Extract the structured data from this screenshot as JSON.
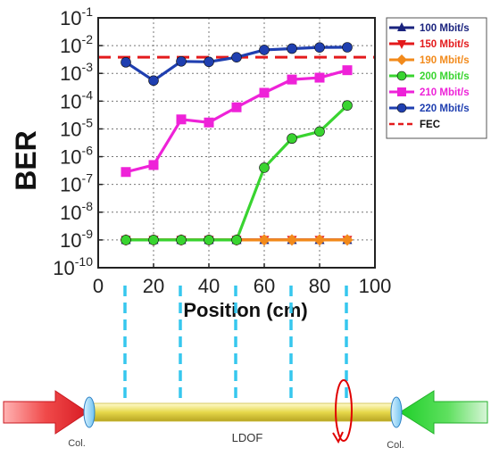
{
  "chart_data": {
    "type": "line",
    "xlabel": "Position (cm)",
    "ylabel": "BER",
    "xlim": [
      0,
      100
    ],
    "ylim_log10": [
      -10,
      -1
    ],
    "y_scale": "log",
    "grid": true,
    "legend_position": "right",
    "x_ticks": [
      "0",
      "20",
      "40",
      "60",
      "80",
      "100"
    ],
    "y_tick_exponents": [
      "-1",
      "-2",
      "-3",
      "-4",
      "-5",
      "-6",
      "-7",
      "-8",
      "-9",
      "-10"
    ],
    "y_tick_base": "10",
    "fec_threshold": 0.0038,
    "fec_label": "FEC",
    "x": [
      10,
      20,
      30,
      40,
      50,
      60,
      70,
      80,
      90
    ],
    "series": [
      {
        "name": "100 Mbit/s",
        "color": "#1a237e",
        "marker": "triangle-up",
        "values": [
          1e-09,
          1e-09,
          1e-09,
          1e-09,
          1e-09,
          1e-09,
          1e-09,
          1e-09,
          1e-09
        ]
      },
      {
        "name": "150 Mbit/s",
        "color": "#e31a1c",
        "marker": "triangle-down",
        "values": [
          1e-09,
          1e-09,
          1e-09,
          1e-09,
          1e-09,
          1e-09,
          1e-09,
          1e-09,
          1e-09
        ]
      },
      {
        "name": "190 Mbit/s",
        "color": "#f28a1b",
        "marker": "diamond",
        "values": [
          1e-09,
          1e-09,
          1e-09,
          1e-09,
          1e-09,
          1e-09,
          1e-09,
          1e-09,
          1e-09
        ]
      },
      {
        "name": "200 Mbit/s",
        "color": "#39d430",
        "marker": "circle",
        "values": [
          1e-09,
          1e-09,
          1e-09,
          1e-09,
          1e-09,
          4e-07,
          4.5e-06,
          8e-06,
          7e-05
        ]
      },
      {
        "name": "210 Mbit/s",
        "color": "#ee22d8",
        "marker": "square",
        "values": [
          2.8e-07,
          5e-07,
          2.2e-05,
          1.7e-05,
          6e-05,
          0.0002,
          0.0006,
          0.0007,
          0.0013
        ]
      },
      {
        "name": "220 Mbit/s",
        "color": "#1f3fb0",
        "marker": "circle",
        "values": [
          0.0025,
          0.00055,
          0.0027,
          0.0026,
          0.0038,
          0.007,
          0.0078,
          0.0086,
          0.0087
        ]
      }
    ]
  },
  "schematic": {
    "fiber_label": "LDOF",
    "left_collimator_label": "Col.",
    "right_collimator_label": "Col.",
    "probe_positions": [
      10,
      30,
      50,
      70,
      90
    ],
    "colors": {
      "left_arrow": "#e8323a",
      "right_arrow": "#2fd53a",
      "fiber": "#e6d84a",
      "probe": "#36c7ee",
      "rotation": "#e00000"
    }
  }
}
